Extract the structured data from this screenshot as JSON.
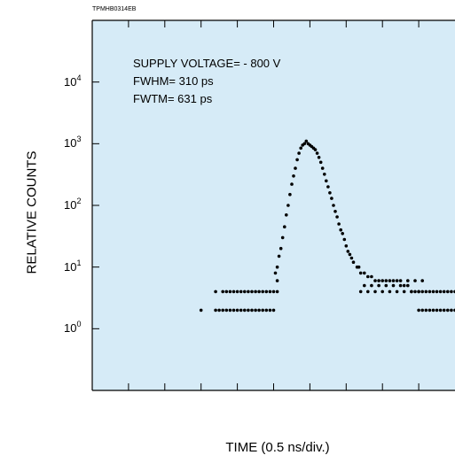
{
  "chart_data": {
    "type": "scatter",
    "doc_id": "TPMHB0314EB",
    "xlabel": "TIME (0.5 ns/div.)",
    "ylabel": "RELATIVE COUNTS",
    "y_scale": "log",
    "ylim": [
      0.1,
      100000
    ],
    "xlim": [
      0,
      10
    ],
    "y_ticks": [
      {
        "base": "10",
        "exp": "0",
        "value": 1
      },
      {
        "base": "10",
        "exp": "1",
        "value": 10
      },
      {
        "base": "10",
        "exp": "2",
        "value": 100
      },
      {
        "base": "10",
        "exp": "3",
        "value": 1000
      },
      {
        "base": "10",
        "exp": "4",
        "value": 10000
      }
    ],
    "x_divisions": 10,
    "annotations": [
      "SUPPLY VOLTAGE= - 800 V",
      "FWHM= 310 ps",
      "FWTM= 631 ps"
    ],
    "background_color": "#d6ebf7",
    "marker_color": "#000000",
    "series": [
      {
        "points": [
          [
            3.0,
            2
          ],
          [
            3.4,
            2
          ],
          [
            3.5,
            2
          ],
          [
            3.6,
            2
          ],
          [
            3.7,
            2
          ],
          [
            3.8,
            2
          ],
          [
            3.9,
            2
          ],
          [
            4.0,
            2
          ],
          [
            4.1,
            2
          ],
          [
            4.2,
            2
          ],
          [
            4.3,
            2
          ],
          [
            4.4,
            2
          ],
          [
            4.5,
            2
          ],
          [
            4.6,
            2
          ],
          [
            4.7,
            2
          ],
          [
            4.8,
            2
          ],
          [
            4.9,
            2
          ],
          [
            5.0,
            2
          ],
          [
            3.4,
            4
          ],
          [
            3.6,
            4
          ],
          [
            3.7,
            4
          ],
          [
            3.8,
            4
          ],
          [
            3.9,
            4
          ],
          [
            4.0,
            4
          ],
          [
            4.1,
            4
          ],
          [
            4.2,
            4
          ],
          [
            4.3,
            4
          ],
          [
            4.4,
            4
          ],
          [
            4.5,
            4
          ],
          [
            4.6,
            4
          ],
          [
            4.7,
            4
          ],
          [
            4.8,
            4
          ],
          [
            4.9,
            4
          ],
          [
            5.0,
            4
          ],
          [
            5.1,
            4
          ],
          [
            5.1,
            6
          ],
          [
            5.05,
            8
          ],
          [
            5.1,
            10
          ],
          [
            5.15,
            15
          ],
          [
            5.2,
            20
          ],
          [
            5.25,
            30
          ],
          [
            5.3,
            45
          ],
          [
            5.35,
            70
          ],
          [
            5.4,
            100
          ],
          [
            5.45,
            150
          ],
          [
            5.5,
            220
          ],
          [
            5.55,
            300
          ],
          [
            5.6,
            400
          ],
          [
            5.65,
            550
          ],
          [
            5.7,
            700
          ],
          [
            5.75,
            850
          ],
          [
            5.8,
            950
          ],
          [
            5.85,
            1000
          ],
          [
            5.9,
            1100
          ],
          [
            5.95,
            1000
          ],
          [
            6.0,
            950
          ],
          [
            6.05,
            900
          ],
          [
            6.1,
            850
          ],
          [
            6.15,
            800
          ],
          [
            6.2,
            700
          ],
          [
            6.25,
            600
          ],
          [
            6.3,
            500
          ],
          [
            6.35,
            400
          ],
          [
            6.4,
            320
          ],
          [
            6.45,
            250
          ],
          [
            6.5,
            200
          ],
          [
            6.55,
            160
          ],
          [
            6.6,
            130
          ],
          [
            6.65,
            100
          ],
          [
            6.7,
            80
          ],
          [
            6.75,
            65
          ],
          [
            6.8,
            50
          ],
          [
            6.85,
            40
          ],
          [
            6.9,
            35
          ],
          [
            6.95,
            28
          ],
          [
            7.0,
            22
          ],
          [
            7.05,
            18
          ],
          [
            7.1,
            16
          ],
          [
            7.15,
            14
          ],
          [
            7.2,
            12
          ],
          [
            7.3,
            10
          ],
          [
            7.35,
            10
          ],
          [
            7.4,
            8
          ],
          [
            7.5,
            8
          ],
          [
            7.6,
            7
          ],
          [
            7.7,
            7
          ],
          [
            7.8,
            6
          ],
          [
            7.9,
            6
          ],
          [
            8.0,
            6
          ],
          [
            8.1,
            6
          ],
          [
            8.2,
            6
          ],
          [
            8.3,
            6
          ],
          [
            8.4,
            6
          ],
          [
            8.5,
            5
          ],
          [
            8.6,
            5
          ],
          [
            8.7,
            5
          ],
          [
            8.8,
            4
          ],
          [
            8.9,
            4
          ],
          [
            9.0,
            4
          ],
          [
            9.1,
            4
          ],
          [
            9.2,
            4
          ],
          [
            9.3,
            4
          ],
          [
            9.4,
            4
          ],
          [
            9.5,
            4
          ],
          [
            9.6,
            4
          ],
          [
            9.7,
            4
          ],
          [
            9.8,
            4
          ],
          [
            9.9,
            4
          ],
          [
            10.0,
            4
          ],
          [
            7.4,
            4
          ],
          [
            7.6,
            4
          ],
          [
            7.8,
            4
          ],
          [
            8.0,
            4
          ],
          [
            8.2,
            4
          ],
          [
            8.4,
            4
          ],
          [
            8.6,
            4
          ],
          [
            8.8,
            4
          ],
          [
            9.0,
            4
          ],
          [
            7.5,
            5
          ],
          [
            7.7,
            5
          ],
          [
            7.9,
            5
          ],
          [
            8.1,
            5
          ],
          [
            8.3,
            5
          ],
          [
            8.5,
            6
          ],
          [
            8.7,
            6
          ],
          [
            8.9,
            6
          ],
          [
            9.1,
            6
          ],
          [
            9.0,
            2
          ],
          [
            9.1,
            2
          ],
          [
            9.2,
            2
          ],
          [
            9.3,
            2
          ],
          [
            9.4,
            2
          ],
          [
            9.5,
            2
          ],
          [
            9.6,
            2
          ],
          [
            9.7,
            2
          ],
          [
            9.8,
            2
          ],
          [
            9.9,
            2
          ],
          [
            10.0,
            2
          ]
        ]
      }
    ]
  }
}
